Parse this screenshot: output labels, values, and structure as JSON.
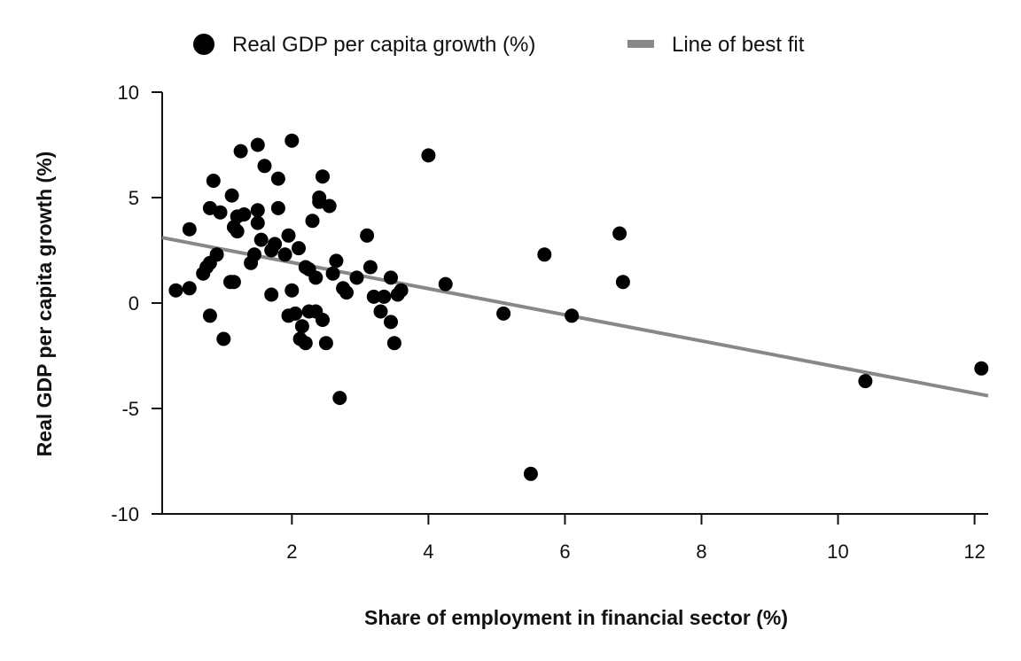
{
  "chart_data": {
    "type": "scatter",
    "xlabel": "Share of employment in financial sector (%)",
    "ylabel": "Real GDP per capita growth (%)",
    "xlim": [
      0.1,
      12.2
    ],
    "ylim": [
      -10,
      10
    ],
    "xticks": [
      2,
      4,
      6,
      8,
      10,
      12
    ],
    "yticks": [
      10,
      5,
      0,
      -5,
      -10
    ],
    "grid": false,
    "legend_position": "top-center",
    "series": [
      {
        "name": "Real GDP per capita growth (%)",
        "color": "#000000",
        "marker": "circle",
        "points": [
          [
            0.3,
            0.6
          ],
          [
            0.5,
            0.7
          ],
          [
            0.5,
            3.5
          ],
          [
            0.7,
            1.4
          ],
          [
            0.75,
            1.7
          ],
          [
            0.8,
            1.9
          ],
          [
            0.8,
            4.5
          ],
          [
            0.8,
            -0.6
          ],
          [
            0.85,
            5.8
          ],
          [
            0.9,
            2.3
          ],
          [
            0.95,
            4.3
          ],
          [
            1.0,
            -1.7
          ],
          [
            1.1,
            1.0
          ],
          [
            1.12,
            5.1
          ],
          [
            1.15,
            3.6
          ],
          [
            1.15,
            1.0
          ],
          [
            1.2,
            3.4
          ],
          [
            1.2,
            4.1
          ],
          [
            1.25,
            7.2
          ],
          [
            1.3,
            4.2
          ],
          [
            1.4,
            1.9
          ],
          [
            1.45,
            2.3
          ],
          [
            1.5,
            3.8
          ],
          [
            1.5,
            4.4
          ],
          [
            1.5,
            7.5
          ],
          [
            1.55,
            3.0
          ],
          [
            1.6,
            6.5
          ],
          [
            1.7,
            0.4
          ],
          [
            1.7,
            2.5
          ],
          [
            1.75,
            2.8
          ],
          [
            1.8,
            5.9
          ],
          [
            1.8,
            4.5
          ],
          [
            1.9,
            2.3
          ],
          [
            1.95,
            3.2
          ],
          [
            1.95,
            -0.6
          ],
          [
            2.0,
            7.7
          ],
          [
            2.0,
            0.6
          ],
          [
            2.05,
            -0.5
          ],
          [
            2.1,
            2.6
          ],
          [
            2.12,
            -1.7
          ],
          [
            2.15,
            -1.1
          ],
          [
            2.2,
            1.7
          ],
          [
            2.2,
            -1.9
          ],
          [
            2.25,
            1.6
          ],
          [
            2.25,
            -0.4
          ],
          [
            2.3,
            3.9
          ],
          [
            2.35,
            1.2
          ],
          [
            2.35,
            -0.4
          ],
          [
            2.4,
            4.8
          ],
          [
            2.4,
            5.0
          ],
          [
            2.45,
            6.0
          ],
          [
            2.45,
            -0.8
          ],
          [
            2.5,
            -1.9
          ],
          [
            2.55,
            4.6
          ],
          [
            2.6,
            1.4
          ],
          [
            2.65,
            2.0
          ],
          [
            2.7,
            -4.5
          ],
          [
            2.75,
            0.7
          ],
          [
            2.8,
            0.5
          ],
          [
            2.95,
            1.2
          ],
          [
            3.1,
            3.2
          ],
          [
            3.15,
            1.7
          ],
          [
            3.2,
            0.3
          ],
          [
            3.3,
            -0.4
          ],
          [
            3.35,
            0.3
          ],
          [
            3.45,
            1.2
          ],
          [
            3.45,
            -0.9
          ],
          [
            3.5,
            -1.9
          ],
          [
            3.55,
            0.4
          ],
          [
            3.6,
            0.6
          ],
          [
            4.0,
            7.0
          ],
          [
            4.25,
            0.9
          ],
          [
            5.1,
            -0.5
          ],
          [
            5.5,
            -8.1
          ],
          [
            5.7,
            2.3
          ],
          [
            6.1,
            -0.6
          ],
          [
            6.8,
            3.3
          ],
          [
            6.85,
            1.0
          ],
          [
            10.4,
            -3.7
          ],
          [
            12.1,
            -3.1
          ]
        ]
      },
      {
        "name": "Line of best fit",
        "color": "#888888",
        "type": "line",
        "points": [
          [
            0.1,
            3.1
          ],
          [
            12.2,
            -4.4
          ]
        ]
      }
    ]
  }
}
